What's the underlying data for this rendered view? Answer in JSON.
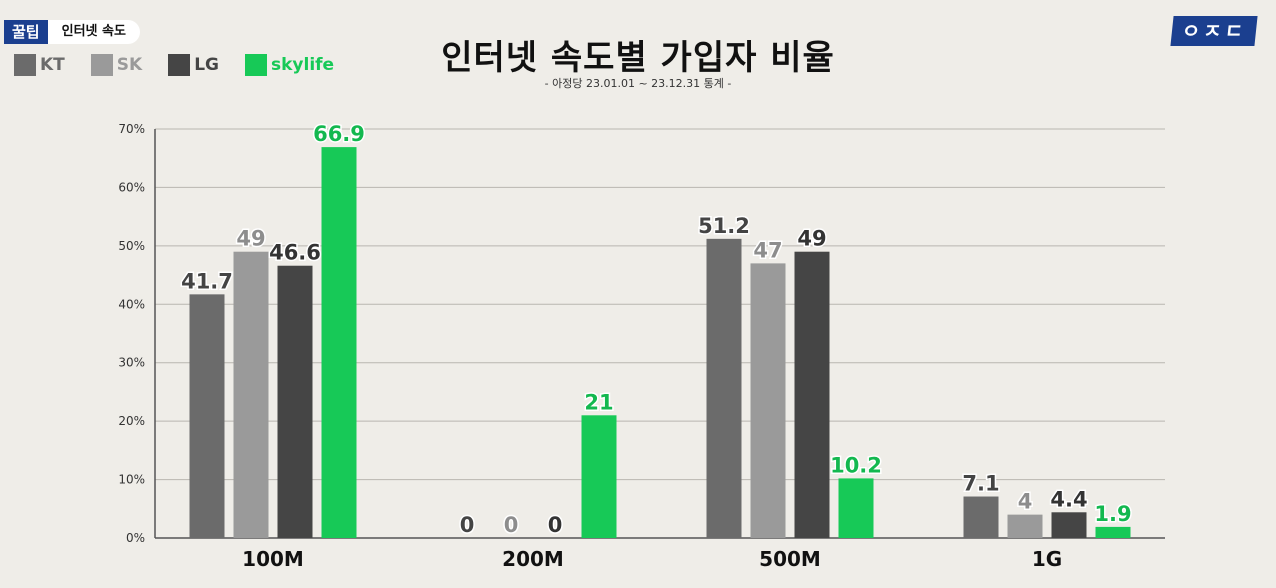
{
  "header": {
    "tag_label": "꿀팁",
    "topic_label": "인터넷 속도"
  },
  "brand_logo": "ㅇㅈㄷ",
  "title": "인터넷 속도별 가입자 비율",
  "subtitle": "- 아정당 23.01.01 ~ 23.12.31 통계 -",
  "colors": {
    "KT": "#6b6b6b",
    "SK": "#9a9a9a",
    "LG": "#454545",
    "skylife": "#17c957",
    "background": "#efede8"
  },
  "chart_data": {
    "type": "bar",
    "categories": [
      "100M",
      "200M",
      "500M",
      "1G"
    ],
    "series": [
      {
        "name": "KT",
        "values": [
          41.7,
          0,
          51.2,
          7.1
        ],
        "labels": [
          "41.7",
          "0",
          "51.2",
          "7.1"
        ]
      },
      {
        "name": "SK",
        "values": [
          49,
          0,
          47,
          4
        ],
        "labels": [
          "49",
          "0",
          "47",
          "4"
        ]
      },
      {
        "name": "LG",
        "values": [
          46.6,
          0,
          49,
          4.4
        ],
        "labels": [
          "46.6",
          "0",
          "49",
          "4.4"
        ]
      },
      {
        "name": "skylife",
        "values": [
          66.9,
          21,
          10.2,
          1.9
        ],
        "labels": [
          "66.9",
          "21",
          "10.2",
          "1.9"
        ]
      }
    ],
    "y_ticks": [
      "0%",
      "10%",
      "20%",
      "30%",
      "40%",
      "50%",
      "60%",
      "70%"
    ],
    "ylim": [
      0,
      70
    ],
    "grid": true,
    "legend_position": "top-left"
  }
}
